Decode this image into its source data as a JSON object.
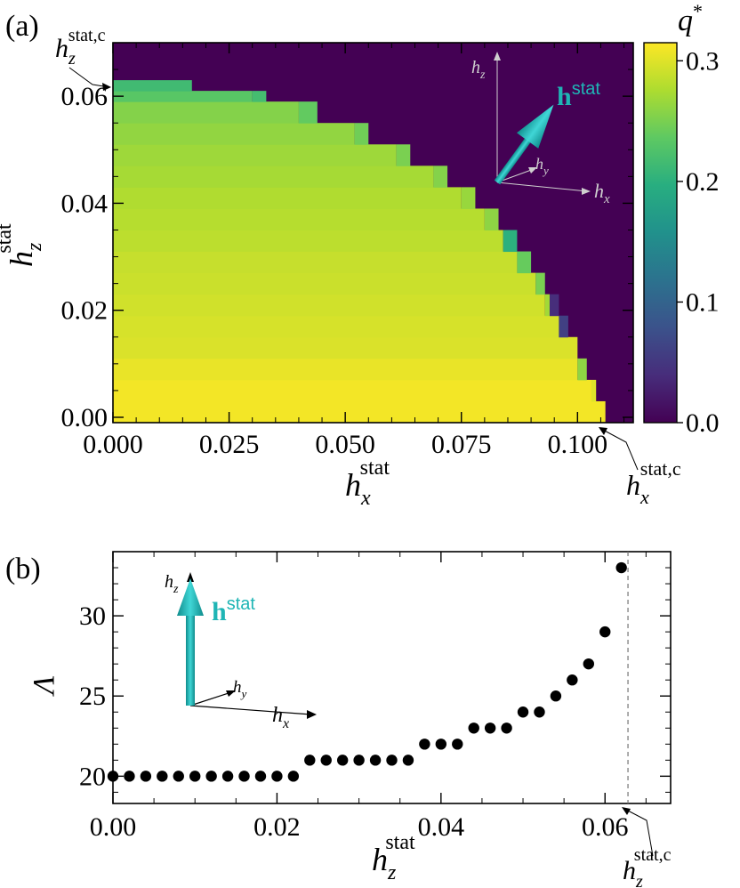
{
  "colors": {
    "background": "#440154",
    "arrow": "#1fb5b5",
    "marker": "#000000",
    "viridis": [
      "#440154",
      "#472d7b",
      "#3b528b",
      "#2c728e",
      "#21918c",
      "#28ae80",
      "#5ec962",
      "#addc30",
      "#fde725"
    ]
  },
  "chart_data": [
    {
      "type": "heatmap",
      "panel_label": "(a)",
      "xlabel": "h",
      "xlabel_sub": "x",
      "xlabel_sup": "stat",
      "ylabel": "h",
      "ylabel_sub": "z",
      "ylabel_sup": "stat",
      "xlim": [
        0.0,
        0.112
      ],
      "ylim": [
        -0.001,
        0.07
      ],
      "xticks": [
        "0.000",
        "0.025",
        "0.050",
        "0.075",
        "0.100"
      ],
      "xtick_values": [
        0.0,
        0.025,
        0.05,
        0.075,
        0.1
      ],
      "yticks": [
        "0.00",
        "0.02",
        "0.04",
        "0.06"
      ],
      "ytick_values": [
        0.0,
        0.02,
        0.04,
        0.06
      ],
      "colorbar": {
        "label": "q",
        "label_sup": "*",
        "ticks": [
          "0.0",
          "0.1",
          "0.2",
          "0.3"
        ],
        "tick_values": [
          0.0,
          0.1,
          0.2,
          0.3
        ],
        "range": [
          0.0,
          0.315
        ]
      },
      "z_bins": [
        {
          "z0": -0.001,
          "z1": 0.003,
          "x_max": 0.106,
          "q": [
            [
              0.106,
              0.31
            ]
          ]
        },
        {
          "z0": 0.003,
          "z1": 0.007,
          "x_max": 0.104,
          "q": [
            [
              0.103,
              0.31
            ],
            [
              0.104,
              0.3
            ]
          ]
        },
        {
          "z0": 0.007,
          "z1": 0.011,
          "x_max": 0.102,
          "q": [
            [
              0.1,
              0.305
            ],
            [
              0.102,
              0.26
            ]
          ]
        },
        {
          "z0": 0.011,
          "z1": 0.015,
          "x_max": 0.1,
          "q": [
            [
              0.1,
              0.298
            ]
          ]
        },
        {
          "z0": 0.015,
          "z1": 0.019,
          "x_max": 0.098,
          "q": [
            [
              0.096,
              0.296
            ],
            [
              0.098,
              0.06
            ]
          ]
        },
        {
          "z0": 0.019,
          "z1": 0.023,
          "x_max": 0.096,
          "q": [
            [
              0.093,
              0.293
            ],
            [
              0.094,
              0.27
            ],
            [
              0.096,
              0.04
            ]
          ]
        },
        {
          "z0": 0.023,
          "z1": 0.027,
          "x_max": 0.093,
          "q": [
            [
              0.091,
              0.29
            ],
            [
              0.093,
              0.25
            ]
          ]
        },
        {
          "z0": 0.027,
          "z1": 0.031,
          "x_max": 0.09,
          "q": [
            [
              0.087,
              0.288
            ],
            [
              0.09,
              0.24
            ]
          ]
        },
        {
          "z0": 0.031,
          "z1": 0.035,
          "x_max": 0.087,
          "q": [
            [
              0.084,
              0.283
            ],
            [
              0.087,
              0.2
            ]
          ]
        },
        {
          "z0": 0.035,
          "z1": 0.039,
          "x_max": 0.083,
          "q": [
            [
              0.08,
              0.28
            ],
            [
              0.083,
              0.26
            ]
          ]
        },
        {
          "z0": 0.039,
          "z1": 0.043,
          "x_max": 0.078,
          "q": [
            [
              0.075,
              0.277
            ],
            [
              0.078,
              0.265
            ]
          ]
        },
        {
          "z0": 0.043,
          "z1": 0.047,
          "x_max": 0.072,
          "q": [
            [
              0.069,
              0.272
            ],
            [
              0.072,
              0.255
            ]
          ]
        },
        {
          "z0": 0.047,
          "z1": 0.051,
          "x_max": 0.064,
          "q": [
            [
              0.061,
              0.268
            ],
            [
              0.064,
              0.25
            ]
          ]
        },
        {
          "z0": 0.051,
          "z1": 0.055,
          "x_max": 0.055,
          "q": [
            [
              0.052,
              0.262
            ],
            [
              0.055,
              0.245
            ]
          ]
        },
        {
          "z0": 0.055,
          "z1": 0.059,
          "x_max": 0.044,
          "q": [
            [
              0.04,
              0.255
            ],
            [
              0.044,
              0.238
            ]
          ]
        },
        {
          "z0": 0.059,
          "z1": 0.061,
          "x_max": 0.033,
          "q": [
            [
              0.03,
              0.232
            ],
            [
              0.033,
              0.218
            ]
          ]
        },
        {
          "z0": 0.061,
          "z1": 0.063,
          "x_max": 0.017,
          "q": [
            [
              0.017,
              0.215
            ]
          ]
        }
      ],
      "annotations": [
        {
          "text": "h",
          "sub": "z",
          "sup": "stat,c",
          "target_x": 0.0,
          "target_y": 0.063
        },
        {
          "text": "h",
          "sub": "x",
          "sup": "stat,c",
          "target_x": 0.107,
          "target_y": -0.001
        }
      ],
      "inset": {
        "axis_z": "h",
        "axis_z_sub": "z",
        "axis_y": "h",
        "axis_y_sub": "y",
        "axis_x": "h",
        "axis_x_sub": "x",
        "vector": "h",
        "vector_sup": "stat"
      }
    },
    {
      "type": "scatter",
      "panel_label": "(b)",
      "xlabel": "h",
      "xlabel_sub": "z",
      "xlabel_sup": "stat",
      "ylabel": "Λ",
      "xlim": [
        0.0,
        0.068
      ],
      "ylim": [
        18.3,
        34.0
      ],
      "xticks": [
        "0.00",
        "0.02",
        "0.04",
        "0.06"
      ],
      "xtick_values": [
        0.0,
        0.02,
        0.04,
        0.06
      ],
      "yticks": [
        "20",
        "25",
        "30"
      ],
      "ytick_values": [
        20,
        25,
        30
      ],
      "vline": 0.0628,
      "x": [
        0.0,
        0.002,
        0.004,
        0.006,
        0.008,
        0.01,
        0.012,
        0.014,
        0.016,
        0.018,
        0.02,
        0.022,
        0.024,
        0.026,
        0.028,
        0.03,
        0.032,
        0.034,
        0.036,
        0.038,
        0.04,
        0.042,
        0.044,
        0.046,
        0.048,
        0.05,
        0.052,
        0.054,
        0.056,
        0.058,
        0.06,
        0.062
      ],
      "y": [
        20,
        20,
        20,
        20,
        20,
        20,
        20,
        20,
        20,
        20,
        20,
        20,
        21,
        21,
        21,
        21,
        21,
        21,
        21,
        22,
        22,
        22,
        23,
        23,
        23,
        24,
        24,
        25,
        26,
        27,
        29,
        33
      ],
      "annotations": [
        {
          "text": "h",
          "sub": "z",
          "sup": "stat,c",
          "target_x": 0.0628
        }
      ],
      "inset": {
        "axis_z": "h",
        "axis_z_sub": "z",
        "axis_y": "h",
        "axis_y_sub": "y",
        "axis_x": "h",
        "axis_x_sub": "x",
        "vector": "h",
        "vector_sup": "stat"
      }
    }
  ]
}
